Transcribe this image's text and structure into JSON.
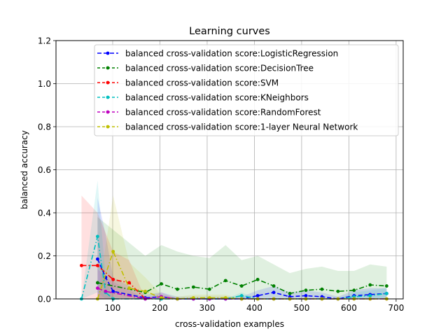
{
  "chart_data": {
    "type": "line",
    "title": "Learning curves",
    "xlabel": "cross-validation examples",
    "ylabel": "balanced accuracy",
    "xlim": [
      -20,
      715
    ],
    "ylim": [
      0.0,
      1.2
    ],
    "xticks": [
      100,
      200,
      300,
      400,
      500,
      600,
      700
    ],
    "yticks": [
      0.0,
      0.2,
      0.4,
      0.6,
      0.8,
      1.0,
      1.2
    ],
    "xtick_labels": [
      "100",
      "200",
      "300",
      "400",
      "500",
      "600",
      "700"
    ],
    "ytick_labels": [
      "0.0",
      "0.2",
      "0.4",
      "0.6",
      "0.8",
      "1.0",
      "1.2"
    ],
    "grid": true,
    "legend_position": "top-right",
    "series": [
      {
        "name": "balanced cross-validation score:LogisticRegression",
        "color": "#0000ff",
        "linestyle": "dash",
        "x": [
          68,
          85,
          101,
          169,
          203,
          237,
          271,
          305,
          339,
          373,
          407,
          441,
          475,
          509,
          543,
          577,
          611,
          645,
          680
        ],
        "y": [
          0.185,
          0.1,
          0.035,
          0.005,
          0.01,
          0.0,
          0.0,
          0.0,
          0.0,
          0.0,
          0.015,
          0.03,
          0.01,
          0.015,
          0.01,
          0.0,
          0.015,
          0.02,
          0.025
        ],
        "band": [
          [
            0.0,
            0.0,
            0.0,
            0.0,
            0.0,
            0.0,
            0.0,
            0.0,
            0.0,
            0.0,
            0.0,
            0.0,
            0.0,
            0.0,
            0.0,
            0.0,
            0.0,
            0.0,
            0.0
          ],
          [
            0.47,
            0.3,
            0.1,
            0.02,
            0.03,
            0.01,
            0.01,
            0.01,
            0.01,
            0.01,
            0.04,
            0.06,
            0.03,
            0.04,
            0.03,
            0.01,
            0.04,
            0.05,
            0.05
          ]
        ]
      },
      {
        "name": "balanced cross-validation score:DecisionTree",
        "color": "#008000",
        "linestyle": "dashdot",
        "x": [
          68,
          169,
          203,
          237,
          271,
          305,
          339,
          373,
          407,
          441,
          475,
          509,
          543,
          577,
          611,
          645,
          680
        ],
        "y": [
          0.075,
          0.03,
          0.07,
          0.045,
          0.055,
          0.045,
          0.085,
          0.06,
          0.09,
          0.06,
          0.025,
          0.04,
          0.045,
          0.035,
          0.04,
          0.065,
          0.06
        ],
        "band": [
          [
            0.0,
            0.0,
            0.0,
            0.0,
            0.0,
            0.0,
            0.0,
            0.0,
            0.0,
            0.0,
            0.0,
            0.0,
            0.0,
            0.0,
            0.0,
            0.0,
            0.0
          ],
          [
            0.38,
            0.2,
            0.25,
            0.22,
            0.2,
            0.19,
            0.25,
            0.18,
            0.2,
            0.16,
            0.12,
            0.14,
            0.15,
            0.13,
            0.13,
            0.16,
            0.15
          ]
        ]
      },
      {
        "name": "balanced cross-validation score:SVM",
        "color": "#ff0000",
        "linestyle": "dashdot",
        "x": [
          34,
          68,
          101,
          135,
          169
        ],
        "y": [
          0.155,
          0.155,
          0.09,
          0.075,
          0.0
        ],
        "band": [
          [
            0.0,
            0.0,
            0.0,
            0.0,
            0.0
          ],
          [
            0.48,
            0.4,
            0.22,
            0.18,
            0.0
          ]
        ]
      },
      {
        "name": "balanced cross-validation score:KNeighbors",
        "color": "#00bfbf",
        "linestyle": "dashdot",
        "x": [
          34,
          68,
          85,
          101,
          169,
          203,
          237,
          271,
          305,
          339,
          373,
          407,
          441,
          475,
          509,
          543,
          577,
          611,
          645,
          680
        ],
        "y": [
          0.0,
          0.29,
          0.03,
          0.0,
          0.0,
          0.0,
          0.0,
          0.0,
          0.0,
          0.0,
          0.015,
          0.0,
          0.0,
          0.0,
          0.0,
          0.0,
          0.0,
          0.01,
          0.015,
          0.025
        ],
        "band": [
          [
            0.0,
            0.03,
            0.0,
            0.0,
            0.0,
            0.0,
            0.0,
            0.0,
            0.0,
            0.0,
            0.0,
            0.0,
            0.0,
            0.0,
            0.0,
            0.0,
            0.0,
            0.0,
            0.0,
            0.0
          ],
          [
            0.0,
            0.55,
            0.1,
            0.0,
            0.0,
            0.0,
            0.0,
            0.0,
            0.0,
            0.0,
            0.03,
            0.0,
            0.0,
            0.0,
            0.0,
            0.0,
            0.0,
            0.03,
            0.04,
            0.05
          ]
        ]
      },
      {
        "name": "balanced cross-validation score:RandomForest",
        "color": "#bf00bf",
        "linestyle": "dashdot",
        "x": [
          68,
          85,
          169,
          203,
          237,
          271,
          305,
          339,
          373,
          407,
          441,
          475,
          509,
          543,
          577,
          611,
          645,
          680
        ],
        "y": [
          0.05,
          0.035,
          0.0,
          0.01,
          0.0,
          0.0,
          0.0,
          0.0,
          0.0,
          0.0,
          0.0,
          0.0,
          0.0,
          0.0,
          0.0,
          0.0,
          0.0,
          0.0
        ],
        "band": [
          [
            0.0,
            0.0,
            0.0,
            0.0,
            0.0,
            0.0,
            0.0,
            0.0,
            0.0,
            0.0,
            0.0,
            0.0,
            0.0,
            0.0,
            0.0,
            0.0,
            0.0,
            0.0
          ],
          [
            0.14,
            0.1,
            0.0,
            0.03,
            0.0,
            0.0,
            0.0,
            0.0,
            0.0,
            0.0,
            0.0,
            0.0,
            0.0,
            0.0,
            0.0,
            0.0,
            0.0,
            0.0
          ]
        ]
      },
      {
        "name": "balanced cross-validation score:1-layer Neural Network",
        "color": "#bfbf00",
        "linestyle": "dashdot",
        "x": [
          68,
          101,
          135,
          169,
          203,
          237,
          271,
          305,
          339,
          373,
          407,
          441,
          475,
          509,
          543,
          577,
          611,
          645,
          680
        ],
        "y": [
          0.0,
          0.22,
          0.05,
          0.035,
          0.005,
          0.0,
          0.005,
          0.005,
          0.005,
          0.0,
          0.0,
          0.0,
          0.0,
          0.0,
          0.0,
          0.0,
          0.0,
          0.0,
          0.0
        ],
        "band": [
          [
            0.0,
            0.0,
            0.0,
            0.0,
            0.0,
            0.0,
            0.0,
            0.0,
            0.0,
            0.0,
            0.0,
            0.0,
            0.0,
            0.0,
            0.0,
            0.0,
            0.0,
            0.0,
            0.0
          ],
          [
            0.0,
            0.48,
            0.17,
            0.1,
            0.02,
            0.01,
            0.02,
            0.02,
            0.02,
            0.0,
            0.0,
            0.0,
            0.0,
            0.0,
            0.0,
            0.0,
            0.0,
            0.0,
            0.0
          ]
        ]
      }
    ]
  }
}
